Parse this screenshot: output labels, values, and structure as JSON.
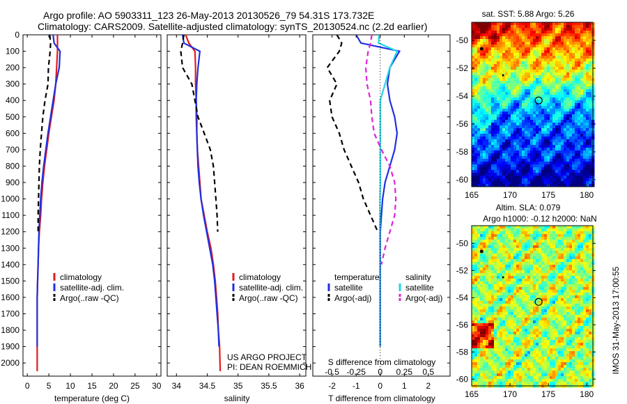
{
  "header": {
    "line1": "Argo profile: AO 5903311_123 26-May-2013 20130526_79 54.31S 173.732E",
    "line2": "Climatology: CARS2009. Satellite-adjusted climatology: synTS_20130524.nc (2.2d earlier)"
  },
  "colors": {
    "climatology": "#e41a1c",
    "satellite": "#1f2fe0",
    "argo": "#000000",
    "satellite_salinity": "#22d4e6",
    "argo_salinity": "#e020d8"
  },
  "chart_data": [
    {
      "type": "line",
      "panel": "temperature",
      "xlabel": "temperature (deg C)",
      "ylabel": "",
      "xlim": [
        -1,
        31
      ],
      "xticks": [
        0,
        5,
        10,
        15,
        20,
        25,
        30
      ],
      "ylim": [
        2080,
        0
      ],
      "yticks": [
        0,
        100,
        200,
        300,
        400,
        500,
        600,
        700,
        800,
        900,
        1000,
        1100,
        1200,
        1300,
        1400,
        1500,
        1600,
        1700,
        1800,
        1900,
        2000
      ],
      "legend": [
        "climatology",
        "satellite-adj. clim.",
        "Argo(..raw -QC)"
      ],
      "series": [
        {
          "name": "climatology",
          "style": "solid",
          "x": [
            7.0,
            7.0,
            7.0,
            6.8,
            6.6,
            6.2,
            5.6,
            5.0,
            4.5,
            4.0,
            3.6,
            3.3,
            3.1,
            2.8,
            2.6,
            2.5,
            2.4,
            2.3,
            2.3,
            2.3,
            2.3,
            2.3
          ],
          "y": [
            0,
            50,
            100,
            200,
            300,
            400,
            500,
            600,
            700,
            800,
            900,
            1000,
            1100,
            1200,
            1300,
            1400,
            1500,
            1600,
            1700,
            1800,
            1900,
            2050
          ]
        },
        {
          "name": "satellite-adj. clim.",
          "style": "solid",
          "x": [
            6.0,
            6.2,
            7.6,
            7.4,
            6.6,
            6.0,
            5.4,
            4.8,
            4.3,
            3.8,
            3.4,
            3.1,
            2.9,
            2.7,
            2.6,
            2.5,
            2.4,
            2.3,
            2.3,
            2.3,
            2.3
          ],
          "y": [
            0,
            50,
            100,
            200,
            300,
            400,
            500,
            600,
            700,
            800,
            900,
            1000,
            1100,
            1200,
            1300,
            1400,
            1500,
            1600,
            1700,
            1800,
            1900
          ]
        },
        {
          "name": "Argo(..raw -QC)",
          "style": "dashed",
          "x": [
            5.2,
            5.4,
            5.3,
            4.9,
            4.8,
            4.1,
            3.6,
            3.3,
            3.0,
            2.8,
            2.7,
            2.6,
            2.5,
            2.5
          ],
          "y": [
            0,
            50,
            100,
            200,
            300,
            400,
            500,
            600,
            700,
            800,
            900,
            1000,
            1100,
            1200
          ]
        }
      ]
    },
    {
      "type": "line",
      "panel": "salinity",
      "xlabel": "salinity",
      "ylabel": "",
      "xlim": [
        33.85,
        36.1
      ],
      "xticks": [
        34,
        34.5,
        35,
        35.5,
        36
      ],
      "ylim": [
        2080,
        0
      ],
      "legend": [
        "climatology",
        "satellite-adj. clim.",
        "Argo(..raw -QC)"
      ],
      "annotation_line1": "US ARGO PROJECT",
      "annotation_line2": "PI: DEAN ROEMMICH",
      "series": [
        {
          "name": "climatology",
          "style": "solid",
          "x": [
            34.15,
            34.2,
            34.3,
            34.31,
            34.31,
            34.32,
            34.32,
            34.33,
            34.34,
            34.36,
            34.38,
            34.4,
            34.45,
            34.5,
            34.56,
            34.6,
            34.63,
            34.65,
            34.67,
            34.68,
            34.7,
            34.71
          ],
          "y": [
            0,
            50,
            100,
            200,
            300,
            400,
            500,
            600,
            700,
            800,
            900,
            1000,
            1100,
            1200,
            1300,
            1400,
            1500,
            1600,
            1700,
            1800,
            1900,
            2050
          ]
        },
        {
          "name": "satellite-adj. clim.",
          "style": "solid",
          "x": [
            34.1,
            34.12,
            34.38,
            34.35,
            34.33,
            34.32,
            34.33,
            34.33,
            34.34,
            34.35,
            34.37,
            34.4,
            34.44,
            34.49,
            34.54,
            34.59,
            34.62,
            34.64,
            34.66,
            34.68,
            34.69
          ],
          "y": [
            0,
            50,
            100,
            200,
            300,
            400,
            500,
            600,
            700,
            800,
            900,
            1000,
            1100,
            1200,
            1300,
            1400,
            1500,
            1600,
            1700,
            1800,
            1900
          ]
        },
        {
          "name": "Argo(..raw -QC)",
          "style": "dashed",
          "x": [
            34.12,
            34.1,
            34.07,
            34.1,
            34.25,
            34.3,
            34.35,
            34.45,
            34.55,
            34.6,
            34.62,
            34.64,
            34.66,
            34.67
          ],
          "y": [
            0,
            50,
            100,
            200,
            300,
            400,
            500,
            600,
            700,
            800,
            900,
            1000,
            1100,
            1200
          ]
        }
      ]
    },
    {
      "type": "line",
      "panel": "difference",
      "xlabel": "T difference from climatology",
      "xlabel_top": "S difference from climatology",
      "ylabel": "",
      "xlim": [
        -2.8,
        2.9
      ],
      "xticks_T": [
        -2,
        -1,
        0,
        1,
        2
      ],
      "xticks_S": [
        -0.5,
        -0.25,
        0,
        0.25,
        0.5
      ],
      "ylim": [
        2080,
        0
      ],
      "legend_temperature_title": "temperature",
      "legend_salinity_title": "salinity",
      "legend": [
        "satellite",
        "Argo(-adj)",
        "satellite",
        "Argo(-adj)"
      ],
      "series": [
        {
          "name": "satellite",
          "group": "temperature",
          "style": "solid",
          "x": [
            -1.0,
            -0.8,
            0.8,
            0.4,
            0.3,
            0.4,
            0.6,
            0.7,
            0.6,
            0.4,
            0.2,
            0.1,
            0.05,
            0.0,
            0.0,
            0.0,
            0.0,
            0.0,
            0.0,
            0.0,
            0.0
          ],
          "y": [
            0,
            50,
            100,
            200,
            300,
            400,
            500,
            600,
            700,
            800,
            900,
            1000,
            1100,
            1200,
            1300,
            1400,
            1500,
            1600,
            1700,
            1800,
            1900
          ]
        },
        {
          "name": "Argo(-adj)",
          "group": "temperature",
          "style": "dashed",
          "x": [
            -1.8,
            -1.6,
            -1.7,
            -2.2,
            -1.8,
            -2.1,
            -2.0,
            -1.7,
            -1.5,
            -1.2,
            -0.9,
            -0.7,
            -0.4,
            -0.1
          ],
          "y": [
            0,
            50,
            100,
            200,
            300,
            400,
            500,
            600,
            700,
            800,
            900,
            1000,
            1100,
            1200
          ]
        },
        {
          "name": "satellite",
          "group": "salinity",
          "style": "solid",
          "x": [
            -0.05,
            -0.07,
            0.7,
            0.4,
            0.2,
            0.0,
            0.0,
            0.0,
            0.0,
            0.0,
            0.0,
            -0.01,
            -0.01,
            -0.02,
            -0.02,
            -0.02,
            -0.02,
            -0.02,
            -0.02,
            -0.02,
            -0.02
          ],
          "y": [
            0,
            50,
            100,
            200,
            300,
            400,
            500,
            600,
            700,
            800,
            900,
            1000,
            1100,
            1200,
            1300,
            1400,
            1500,
            1600,
            1700,
            1800,
            1900
          ]
        },
        {
          "name": "Argo(-adj)",
          "group": "salinity",
          "style": "dashed",
          "x": [
            -0.35,
            -0.4,
            -0.5,
            -0.6,
            -0.55,
            -0.4,
            -0.35,
            -0.25,
            0.05,
            0.4,
            0.6,
            0.65,
            0.6,
            0.4,
            0.2,
            0.05
          ],
          "y": [
            0,
            50,
            100,
            200,
            300,
            400,
            500,
            600,
            700,
            800,
            900,
            1000,
            1100,
            1200,
            1300,
            1400
          ]
        }
      ]
    },
    {
      "type": "heatmap",
      "panel": "sst_map",
      "title": "sat. SST: 5.88 Argo: 5.26",
      "xlim": [
        165,
        180.8
      ],
      "xticks": [
        165,
        170,
        175,
        180
      ],
      "ylim": [
        -60.5,
        -48.7
      ],
      "yticks": [
        -50,
        -52,
        -54,
        -56,
        -58,
        -60
      ],
      "marker": {
        "lon": 173.73,
        "lat": -54.31
      }
    },
    {
      "type": "heatmap",
      "panel": "sla_map",
      "title_line1": "Altim. SLA: 0.079",
      "title_line2": "Argo h1000: -0.12 h2000: NaN",
      "side_label": "IMOS 31-May-2013 17:00:55",
      "xlim": [
        165,
        180.8
      ],
      "xticks": [
        165,
        170,
        175,
        180
      ],
      "ylim": [
        -60.5,
        -48.7
      ],
      "yticks": [
        -50,
        -52,
        -54,
        -56,
        -58,
        -60
      ],
      "marker": {
        "lon": 173.73,
        "lat": -54.31
      }
    }
  ]
}
